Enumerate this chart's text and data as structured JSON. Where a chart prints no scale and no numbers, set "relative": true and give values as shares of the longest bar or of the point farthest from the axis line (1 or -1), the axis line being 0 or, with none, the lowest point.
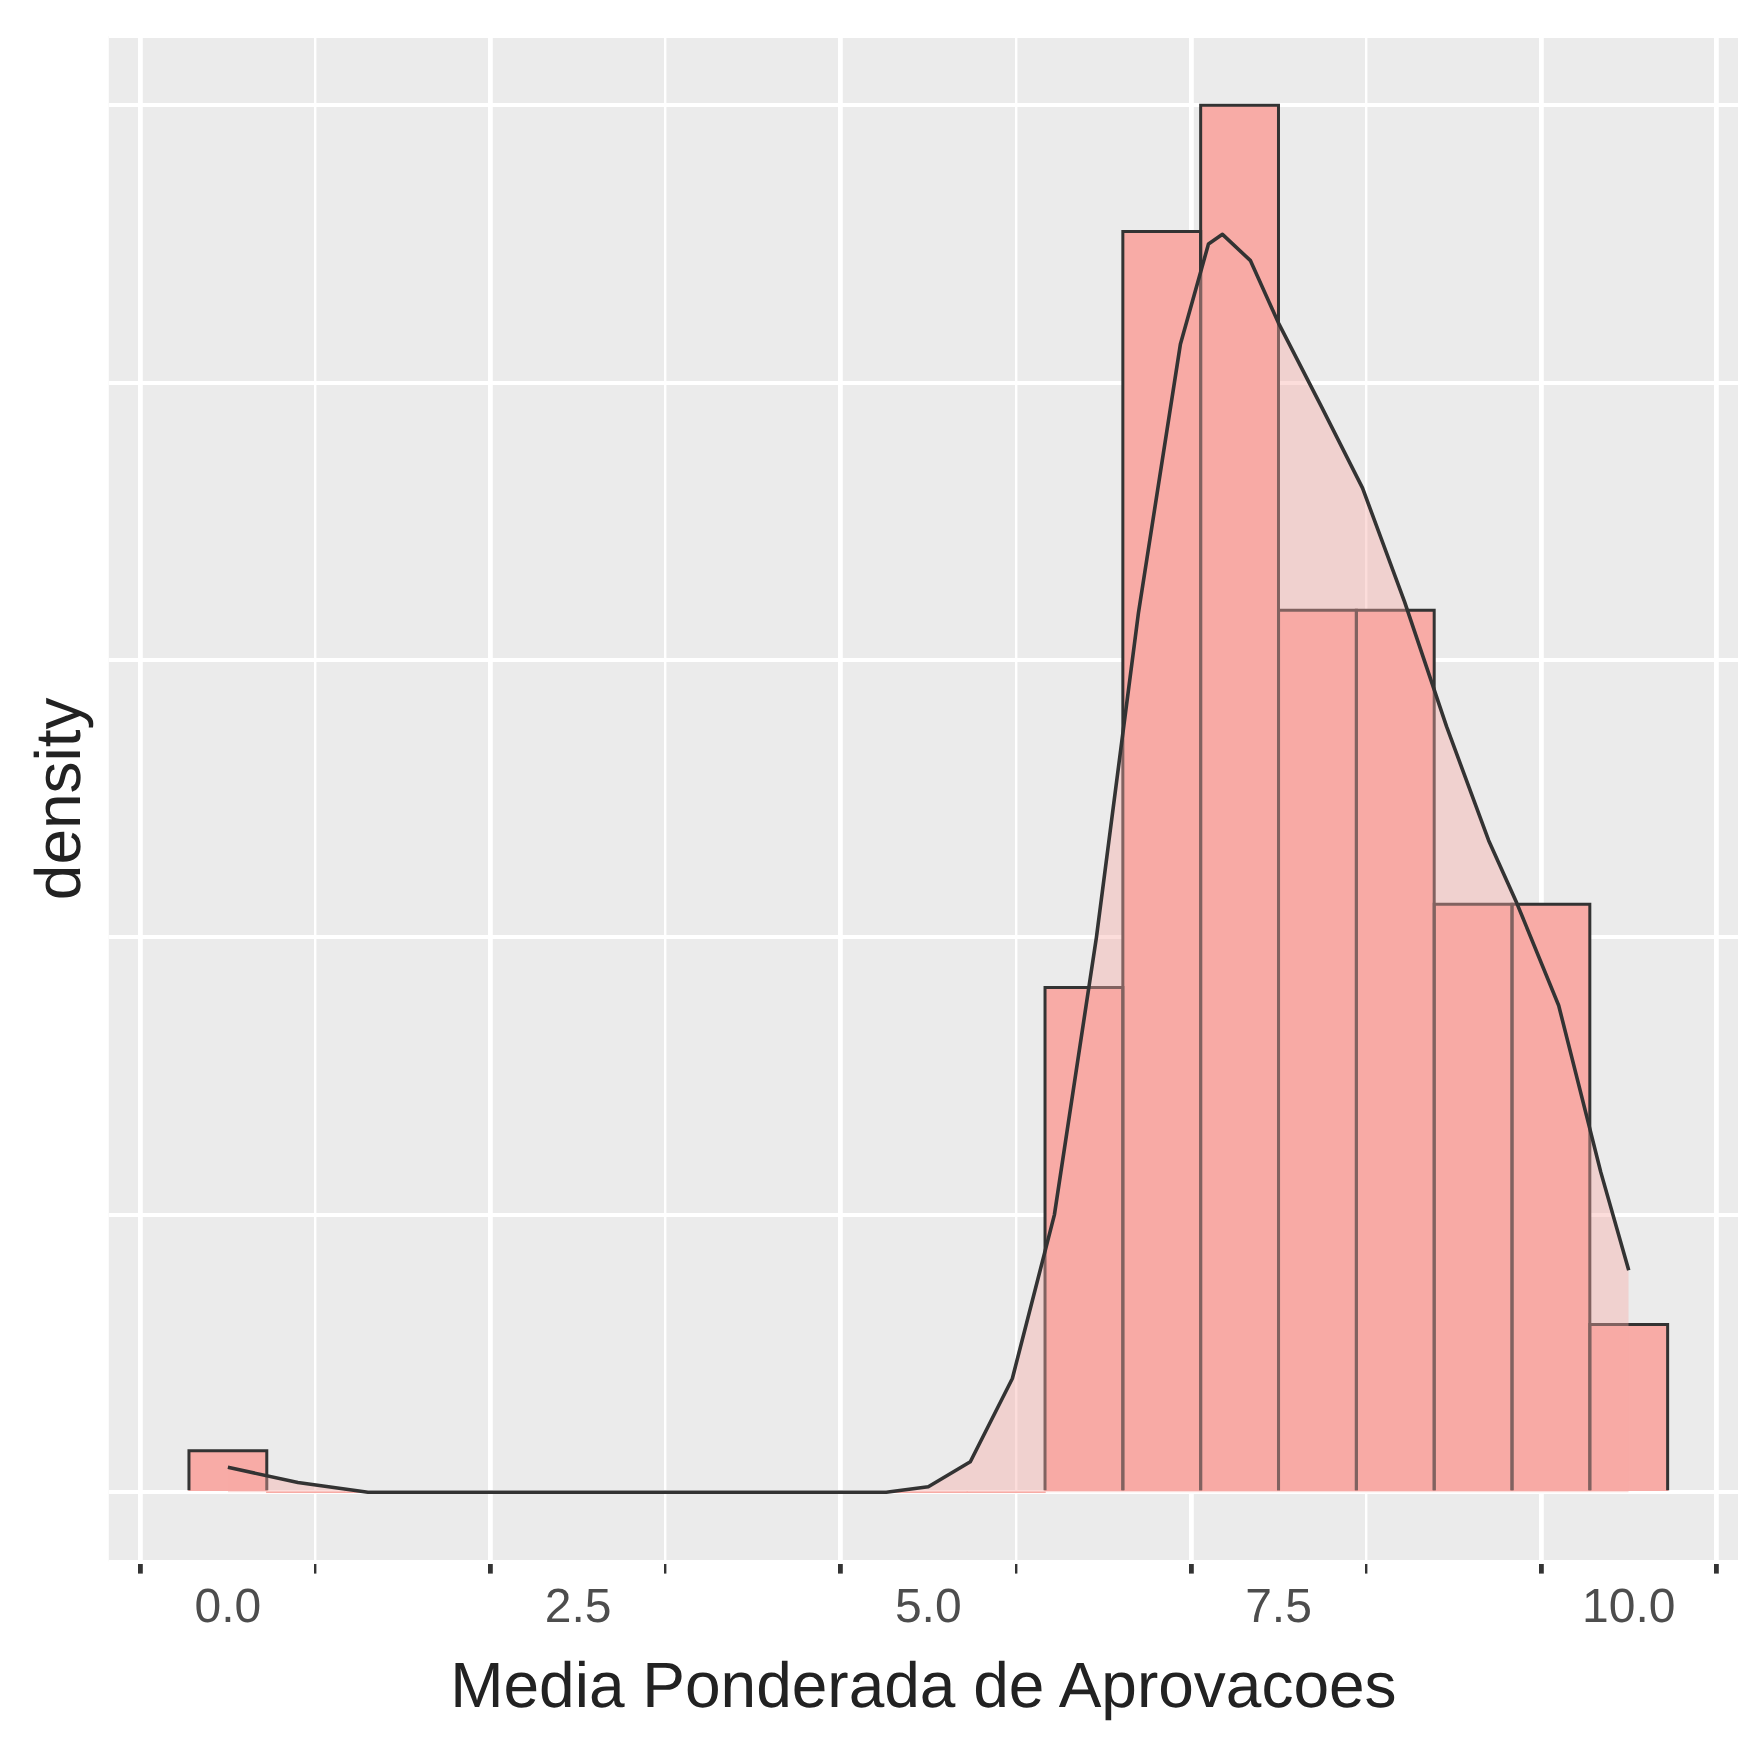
{
  "chart_data": {
    "type": "histogram",
    "xlabel": "Media Ponderada de Aprovacoes",
    "ylabel": "density",
    "relative": true,
    "color": "#f8aba6",
    "bins": [
      -0.278,
      0.278,
      0.833,
      1.389,
      1.944,
      2.5,
      3.056,
      3.611,
      4.167,
      4.722,
      5.278,
      5.833,
      6.389,
      6.944,
      7.5,
      8.056,
      8.611,
      9.167,
      9.722,
      10.278
    ],
    "values": [
      0.03,
      0,
      0,
      0,
      0,
      0,
      0,
      0,
      0,
      0,
      0,
      0.364,
      0.909,
      1,
      0.636,
      0.636,
      0.424,
      0.424,
      0.121
    ],
    "series": [
      {
        "type": "area",
        "color": "#333333",
        "x": [
          0,
          0.5,
          1,
          2,
          3,
          4,
          4.7,
          5,
          5.3,
          5.6,
          5.9,
          6.2,
          6.5,
          6.8,
          7,
          7.1,
          7.3,
          7.5,
          7.8,
          8.1,
          8.4,
          8.7,
          9,
          9.2,
          9.5,
          9.8,
          10
        ],
        "values": [
          0.018,
          0.007,
          0,
          0,
          0,
          0,
          0,
          0.004,
          0.022,
          0.082,
          0.2,
          0.4,
          0.634,
          0.828,
          0.9,
          0.907,
          0.888,
          0.843,
          0.784,
          0.724,
          0.642,
          0.552,
          0.47,
          0.425,
          0.351,
          0.231,
          0.16
        ]
      }
    ],
    "xlim": [
      -0.85,
      10.78
    ],
    "xticks": [
      {
        "value": 0,
        "label": "0.0"
      },
      {
        "value": 2.5,
        "label": "2.5"
      },
      {
        "value": 5,
        "label": "5.0"
      },
      {
        "value": 7.5,
        "label": "7.5"
      },
      {
        "value": 10,
        "label": "10.0"
      }
    ],
    "grid": true,
    "legend": false
  }
}
